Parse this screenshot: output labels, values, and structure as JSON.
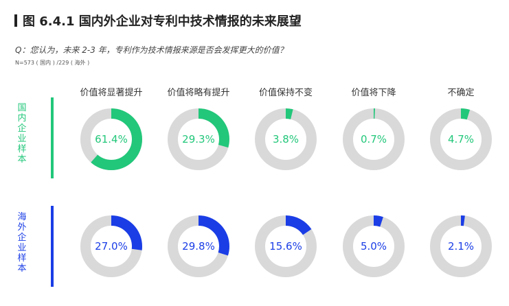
{
  "title": "图 6.4.1 国内外企业对专利中技术情报的未来展望",
  "question": "Q：您认为，未来 2-3 年，专利作为技术情报来源是否会发挥更大的价值？",
  "sample_note": "N=573 ( 国内 ) /229 ( 海外 )",
  "colors": {
    "domestic": "#22c77a",
    "overseas": "#1a3de6",
    "track": "#d9d9d9"
  },
  "chart_data": {
    "type": "donut",
    "categories": [
      "价值将显著提升",
      "价值将略有提升",
      "价值保持不变",
      "价值将下降",
      "不确定"
    ],
    "unit": "%",
    "series": [
      {
        "name": "国内企业样本",
        "values": [
          61.4,
          29.3,
          3.8,
          0.7,
          4.7
        ]
      },
      {
        "name": "海外企业样本",
        "values": [
          27.0,
          29.8,
          15.6,
          5.0,
          2.1
        ]
      }
    ]
  }
}
